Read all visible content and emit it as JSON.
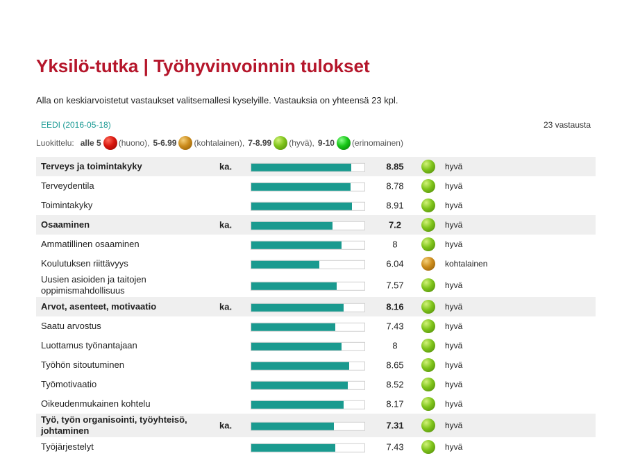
{
  "page": {
    "title": "Yksilö-tutka | Työhyvinvoinnin tulokset",
    "intro": "Alla on keskiarvoistetut vastaukset valitsemallesi kyselyille. Vastauksia on yhteensä 23 kpl.",
    "survey_link": "EEDI (2016-05-18)",
    "response_count": "23 vastausta"
  },
  "legend": {
    "label": "Luokittelu:",
    "items": [
      {
        "range": "alle 5",
        "desc": "(huono),",
        "color": "red"
      },
      {
        "range": "5-6.99",
        "desc": "(kohtalainen),",
        "color": "amber"
      },
      {
        "range": "7-8.99",
        "desc": "(hyvä),",
        "color": "lime"
      },
      {
        "range": "9-10",
        "desc": "(erinomainen)",
        "color": "green"
      }
    ]
  },
  "colors": {
    "title": "#b5162b",
    "link": "#1a9a94",
    "bar_fill": "#1a9a8f",
    "category_bg": "#efefef"
  },
  "rows": [
    {
      "type": "category",
      "name": "Terveys ja toimintakyky",
      "ka": "ka.",
      "value": "8.85",
      "rating": "hyvä",
      "color": "lime"
    },
    {
      "type": "item",
      "name": "Terveydentila",
      "value": "8.78",
      "rating": "hyvä",
      "color": "lime"
    },
    {
      "type": "item",
      "name": "Toimintakyky",
      "value": "8.91",
      "rating": "hyvä",
      "color": "lime"
    },
    {
      "type": "category",
      "name": "Osaaminen",
      "ka": "ka.",
      "value": "7.2",
      "rating": "hyvä",
      "color": "lime"
    },
    {
      "type": "item",
      "name": "Ammatillinen osaaminen",
      "value": "8",
      "rating": "hyvä",
      "color": "lime"
    },
    {
      "type": "item",
      "name": "Koulutuksen riittävyys",
      "value": "6.04",
      "rating": "kohtalainen",
      "color": "amber"
    },
    {
      "type": "item",
      "name": "Uusien asioiden ja taitojen oppimismahdollisuus",
      "value": "7.57",
      "rating": "hyvä",
      "color": "lime",
      "tall": true
    },
    {
      "type": "category",
      "name": "Arvot, asenteet, motivaatio",
      "ka": "ka.",
      "value": "8.16",
      "rating": "hyvä",
      "color": "lime"
    },
    {
      "type": "item",
      "name": "Saatu arvostus",
      "value": "7.43",
      "rating": "hyvä",
      "color": "lime"
    },
    {
      "type": "item",
      "name": "Luottamus työnantajaan",
      "value": "8",
      "rating": "hyvä",
      "color": "lime"
    },
    {
      "type": "item",
      "name": "Työhön sitoutuminen",
      "value": "8.65",
      "rating": "hyvä",
      "color": "lime"
    },
    {
      "type": "item",
      "name": "Työmotivaatio",
      "value": "8.52",
      "rating": "hyvä",
      "color": "lime"
    },
    {
      "type": "item",
      "name": "Oikeudenmukainen kohtelu",
      "value": "8.17",
      "rating": "hyvä",
      "color": "lime"
    },
    {
      "type": "category",
      "name": "Työ, työn organisointi, työyhteisö, johtaminen",
      "ka": "ka.",
      "value": "7.31",
      "rating": "hyvä",
      "color": "lime",
      "tall": true
    },
    {
      "type": "item",
      "name": "Työjärjestelyt",
      "value": "7.43",
      "rating": "hyvä",
      "color": "lime"
    }
  ]
}
